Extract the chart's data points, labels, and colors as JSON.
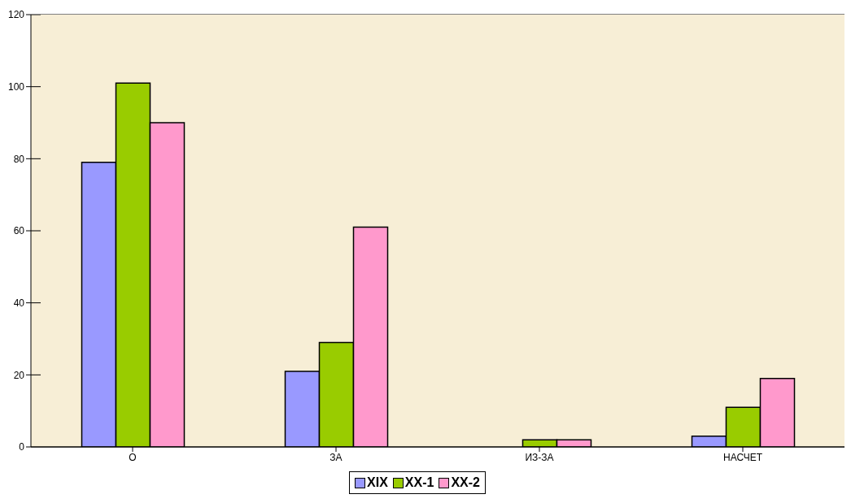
{
  "chart_data": {
    "type": "bar",
    "categories": [
      "О",
      "ЗА",
      "ИЗ-ЗА",
      "НАСЧЕТ"
    ],
    "series": [
      {
        "name": "XIX",
        "color": "#9999ff",
        "values": [
          79,
          21,
          0,
          3
        ]
      },
      {
        "name": "XX-1",
        "color": "#99cc00",
        "values": [
          101,
          29,
          2,
          11
        ]
      },
      {
        "name": "XX-2",
        "color": "#ff99cc",
        "values": [
          90,
          61,
          2,
          19
        ]
      }
    ],
    "ylim": [
      0,
      120
    ],
    "yticks": [
      0,
      20,
      40,
      60,
      80,
      100,
      120
    ],
    "grid": "y",
    "legend": "bottom"
  }
}
